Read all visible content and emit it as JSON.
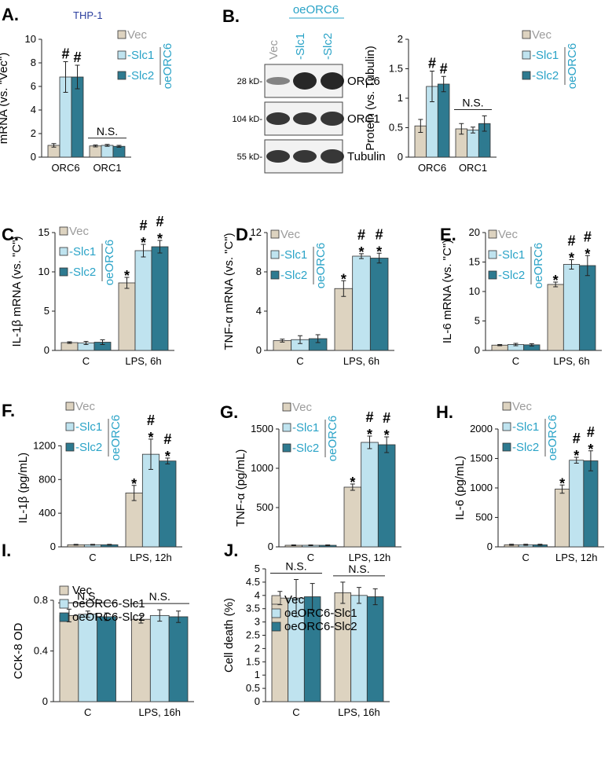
{
  "colors": {
    "vec": "#ddd3c0",
    "slc1": "#bfe3ef",
    "slc2": "#2e7a90",
    "accent": "#2aa3c7",
    "accent_dark": "#2b3f9e",
    "grey": "#9c9c9c"
  },
  "panelB": {
    "letter": "B.",
    "header": "oeORC6",
    "lanes": [
      "Vec",
      "-Slc1",
      "-Slc2"
    ],
    "rows": [
      {
        "size": "28 kD-",
        "name": "ORC6"
      },
      {
        "size": "104 kD-",
        "name": "ORC1"
      },
      {
        "size": "55 kD-",
        "name": "Tubulin"
      }
    ]
  },
  "chart_data": [
    {
      "id": "A",
      "letter": "A.",
      "type": "bar",
      "subtitle": "THP-1",
      "ylabel": "mRNA (vs. \"Vec\")",
      "categories": [
        "ORC6",
        "ORC1"
      ],
      "ylim": [
        0,
        10
      ],
      "ticks": [
        0,
        2,
        4,
        6,
        8,
        10
      ],
      "series": [
        {
          "name": "Vec",
          "values": [
            1.0,
            0.95
          ],
          "errors": [
            0.15,
            0.08
          ]
        },
        {
          "name": "-Slc1",
          "values": [
            6.8,
            1.0
          ],
          "errors": [
            1.3,
            0.08
          ]
        },
        {
          "name": "-Slc2",
          "values": [
            6.8,
            0.92
          ],
          "errors": [
            1.0,
            0.08
          ]
        }
      ],
      "marks": [
        [
          "",
          "#",
          "#"
        ],
        [
          "",
          "",
          ""
        ]
      ],
      "ns": [
        "",
        "N.S."
      ],
      "legend": {
        "mode": "side",
        "labels": [
          "Vec",
          "-Slc1",
          "-Slc2"
        ],
        "group": "oeORC6"
      }
    },
    {
      "id": "B2",
      "letter": "",
      "type": "bar",
      "ylabel": "Protein (vs. Tubulin)",
      "categories": [
        "ORC6",
        "ORC1"
      ],
      "ylim": [
        0,
        2
      ],
      "ticks": [
        0,
        0.5,
        1,
        1.5,
        2
      ],
      "series": [
        {
          "name": "Vec",
          "values": [
            0.53,
            0.48
          ],
          "errors": [
            0.11,
            0.09
          ]
        },
        {
          "name": "-Slc1",
          "values": [
            1.2,
            0.46
          ],
          "errors": [
            0.26,
            0.05
          ]
        },
        {
          "name": "-Slc2",
          "values": [
            1.24,
            0.57
          ],
          "errors": [
            0.13,
            0.13
          ]
        }
      ],
      "marks": [
        [
          "",
          "#",
          "#"
        ],
        [
          "",
          "",
          ""
        ]
      ],
      "ns": [
        "",
        "N.S."
      ],
      "legend": {
        "mode": "side",
        "labels": [
          "Vec",
          "-Slc1",
          "-Slc2"
        ],
        "group": "oeORC6"
      }
    },
    {
      "id": "C",
      "letter": "C.",
      "type": "bar",
      "ylabel": "IL-1β mRNA (vs. \"C\")",
      "categories": [
        "C",
        "LPS, 6h"
      ],
      "ylim": [
        0,
        15
      ],
      "ticks": [
        0,
        5,
        10,
        15
      ],
      "series": [
        {
          "name": "Vec",
          "values": [
            1.0,
            8.6
          ],
          "errors": [
            0.1,
            0.7
          ]
        },
        {
          "name": "-Slc1",
          "values": [
            0.95,
            12.7
          ],
          "errors": [
            0.2,
            0.8
          ]
        },
        {
          "name": "-Slc2",
          "values": [
            1.05,
            13.2
          ],
          "errors": [
            0.3,
            0.8
          ]
        }
      ],
      "marks": [
        [
          "",
          "",
          ""
        ],
        [
          "*",
          "#\n*",
          "#\n*"
        ]
      ],
      "ns": [
        "",
        ""
      ],
      "legend": {
        "mode": "side",
        "labels": [
          "Vec",
          "-Slc1",
          "-Slc2"
        ],
        "group": "oeORC6"
      }
    },
    {
      "id": "D",
      "letter": "D.",
      "type": "bar",
      "ylabel": "TNF-α mRNA (vs. \"C\")",
      "categories": [
        "C",
        "LPS, 6h"
      ],
      "ylim": [
        0,
        12
      ],
      "ticks": [
        0,
        4,
        8,
        12
      ],
      "series": [
        {
          "name": "Vec",
          "values": [
            1.0,
            6.3
          ],
          "errors": [
            0.15,
            0.8
          ]
        },
        {
          "name": "-Slc1",
          "values": [
            1.1,
            9.6
          ],
          "errors": [
            0.4,
            0.25
          ]
        },
        {
          "name": "-Slc2",
          "values": [
            1.2,
            9.4
          ],
          "errors": [
            0.4,
            0.5
          ]
        }
      ],
      "marks": [
        [
          "",
          "",
          ""
        ],
        [
          "*",
          "#\n*",
          "#\n*"
        ]
      ],
      "ns": [
        "",
        ""
      ],
      "legend": {
        "mode": "side",
        "labels": [
          "Vec",
          "-Slc1",
          "-Slc2"
        ],
        "group": "oeORC6"
      }
    },
    {
      "id": "E",
      "letter": "E.",
      "type": "bar",
      "ylabel": "IL-6 mRNA (vs. \"C\")",
      "categories": [
        "C",
        "LPS, 6h"
      ],
      "ylim": [
        0,
        20
      ],
      "ticks": [
        0,
        5,
        10,
        15,
        20
      ],
      "series": [
        {
          "name": "Vec",
          "values": [
            0.9,
            11.2
          ],
          "errors": [
            0.1,
            0.4
          ]
        },
        {
          "name": "-Slc1",
          "values": [
            1.0,
            14.6
          ],
          "errors": [
            0.2,
            0.8
          ]
        },
        {
          "name": "-Slc2",
          "values": [
            0.95,
            14.4
          ],
          "errors": [
            0.2,
            1.7
          ]
        }
      ],
      "marks": [
        [
          "",
          "",
          ""
        ],
        [
          "*",
          "#\n*",
          "#\n*"
        ]
      ],
      "ns": [
        "",
        ""
      ],
      "legend": {
        "mode": "side",
        "labels": [
          "Vec",
          "-Slc1",
          "-Slc2"
        ],
        "group": "oeORC6"
      }
    },
    {
      "id": "F",
      "letter": "F.",
      "type": "bar",
      "ylabel": "IL-1β (pg/mL)",
      "categories": [
        "C",
        "LPS, 12h"
      ],
      "ylim": [
        0,
        1400
      ],
      "ticks": [
        0,
        400,
        800,
        1200
      ],
      "series": [
        {
          "name": "Vec",
          "values": [
            25,
            640
          ],
          "errors": [
            5,
            90
          ]
        },
        {
          "name": "-Slc1",
          "values": [
            25,
            1100
          ],
          "errors": [
            5,
            180
          ]
        },
        {
          "name": "-Slc2",
          "values": [
            25,
            1020
          ],
          "errors": [
            5,
            35
          ]
        }
      ],
      "marks": [
        [
          "",
          "",
          ""
        ],
        [
          "*",
          "#\n*",
          "#\n*"
        ]
      ],
      "ns": [
        "",
        ""
      ],
      "legend": {
        "mode": "side",
        "labels": [
          "Vec",
          "-Slc1",
          "-Slc2"
        ],
        "group": "oeORC6"
      }
    },
    {
      "id": "G",
      "letter": "G.",
      "type": "bar",
      "ylabel": "TNF-α  (pg/mL)",
      "categories": [
        "C",
        "LPS, 12h"
      ],
      "ylim": [
        0,
        1500
      ],
      "ticks": [
        0,
        500,
        1000,
        1500
      ],
      "series": [
        {
          "name": "Vec",
          "values": [
            20,
            760
          ],
          "errors": [
            5,
            40
          ]
        },
        {
          "name": "-Slc1",
          "values": [
            20,
            1330
          ],
          "errors": [
            5,
            80
          ]
        },
        {
          "name": "-Slc2",
          "values": [
            20,
            1300
          ],
          "errors": [
            5,
            100
          ]
        }
      ],
      "marks": [
        [
          "",
          "",
          ""
        ],
        [
          "*",
          "#\n*",
          "#\n*"
        ]
      ],
      "ns": [
        "",
        ""
      ],
      "legend": {
        "mode": "side",
        "labels": [
          "Vec",
          "-Slc1",
          "-Slc2"
        ],
        "group": "oeORC6"
      }
    },
    {
      "id": "H",
      "letter": "H.",
      "type": "bar",
      "ylabel": "IL-6 (pg/mL)",
      "categories": [
        "C",
        "LPS, 12h"
      ],
      "ylim": [
        0,
        2000
      ],
      "ticks": [
        0,
        500,
        1000,
        1500,
        2000
      ],
      "series": [
        {
          "name": "Vec",
          "values": [
            35,
            980
          ],
          "errors": [
            10,
            70
          ]
        },
        {
          "name": "-Slc1",
          "values": [
            35,
            1470
          ],
          "errors": [
            10,
            50
          ]
        },
        {
          "name": "-Slc2",
          "values": [
            35,
            1460
          ],
          "errors": [
            10,
            170
          ]
        }
      ],
      "marks": [
        [
          "",
          "",
          ""
        ],
        [
          "*",
          "#\n*",
          "#\n*"
        ]
      ],
      "ns": [
        "",
        ""
      ],
      "legend": {
        "mode": "side",
        "labels": [
          "Vec",
          "-Slc1",
          "-Slc2"
        ],
        "group": "oeORC6"
      }
    },
    {
      "id": "I",
      "letter": "I.",
      "type": "bar",
      "ylabel": "CCK-8 OD",
      "categories": [
        "C",
        "LPS, 16h"
      ],
      "ylim": [
        0,
        0.8
      ],
      "ticks": [
        0,
        0.4,
        0.8
      ],
      "series": [
        {
          "name": "Vec",
          "values": [
            0.68,
            0.65
          ],
          "errors": [
            0.05,
            0.03
          ]
        },
        {
          "name": "oeORC6-Slc1",
          "values": [
            0.69,
            0.68
          ],
          "errors": [
            0.025,
            0.045
          ]
        },
        {
          "name": "oeORC6-Slc2",
          "values": [
            0.67,
            0.67
          ],
          "errors": [
            0.03,
            0.045
          ]
        }
      ],
      "marks": [
        [
          "",
          "",
          ""
        ],
        [
          "",
          "",
          ""
        ]
      ],
      "ns": [
        "N.S.",
        "N.S."
      ],
      "legend": {
        "mode": "top",
        "labels": [
          "Vec",
          "oeORC6-Slc1",
          "oeORC6-Slc2"
        ],
        "group": ""
      }
    },
    {
      "id": "J",
      "letter": "J.",
      "type": "bar",
      "ylabel": "Cell death (%)",
      "categories": [
        "C",
        "LPS, 16h"
      ],
      "ylim": [
        0,
        5
      ],
      "ticks": [
        0,
        0.5,
        1,
        1.5,
        2,
        2.5,
        3,
        3.5,
        4,
        4.5,
        5
      ],
      "series": [
        {
          "name": "Vec",
          "values": [
            3.9,
            4.1
          ],
          "errors": [
            0.25,
            0.4
          ]
        },
        {
          "name": "oeORC6-Slc1",
          "values": [
            3.9,
            4.0
          ],
          "errors": [
            0.7,
            0.3
          ]
        },
        {
          "name": "oeORC6-Slc2",
          "values": [
            3.95,
            3.95
          ],
          "errors": [
            0.5,
            0.3
          ]
        }
      ],
      "marks": [
        [
          "",
          "",
          ""
        ],
        [
          "",
          "",
          ""
        ]
      ],
      "ns": [
        "N.S.",
        "N.S."
      ],
      "legend": {
        "mode": "top",
        "labels": [
          "Vec",
          "oeORC6-Slc1",
          "oeORC6-Slc2"
        ],
        "group": ""
      }
    }
  ]
}
